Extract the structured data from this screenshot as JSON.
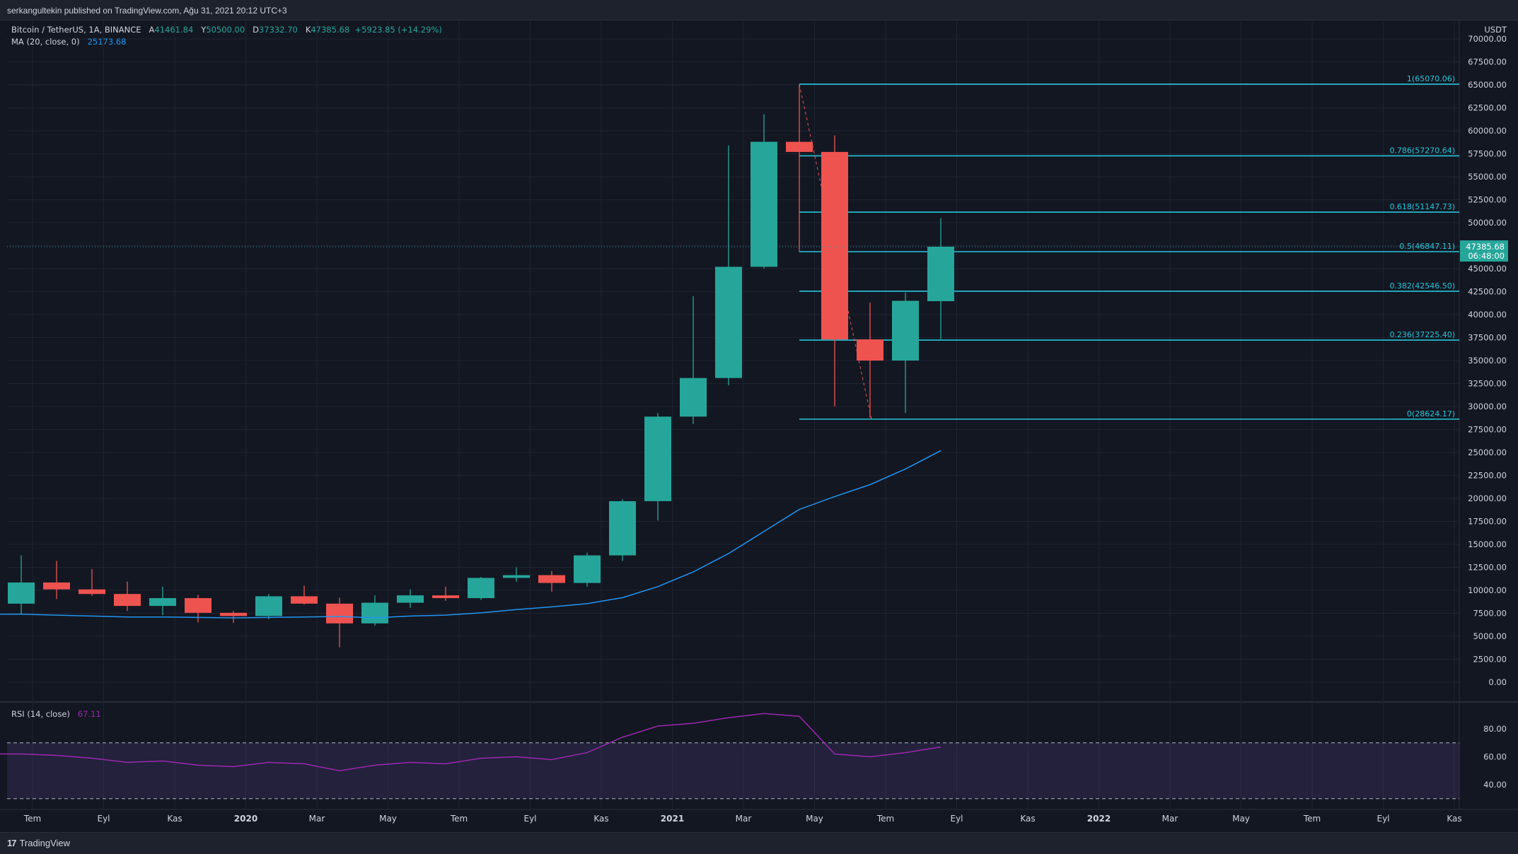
{
  "header": {
    "published": "serkangultekin published on TradingView.com, Ağu 31, 2021 20:12 UTC+3"
  },
  "legend": {
    "symbol": "Bitcoin / TetherUS, 1A, BINANCE",
    "o_label": "A",
    "o": "41461.84",
    "h_label": "Y",
    "h": "50500.00",
    "l_label": "D",
    "l": "37332.70",
    "c_label": "K",
    "c": "47385.68",
    "change": "+5923.85 (+14.29%)",
    "ma_label": "MA (20, close, 0)",
    "ma_value": "25173.68",
    "rsi_label": "RSI (14, close)",
    "rsi_value": "67.11"
  },
  "footer": {
    "brand": "TradingView",
    "brand_mark": "17"
  },
  "colors": {
    "background": "#131722",
    "grid": "#1f2330",
    "up": "#26a69a",
    "down": "#ef5350",
    "ma": "#2196f3",
    "fib": "#26c6da",
    "rsi": "#9c27b0",
    "text": "#d1d4dc"
  },
  "chart_data": {
    "type": "candlestick",
    "currency": "USDT",
    "y_ticks": [
      "70000.00",
      "67500.00",
      "65000.00",
      "62500.00",
      "60000.00",
      "57500.00",
      "55000.00",
      "52500.00",
      "50000.00",
      "47500.00",
      "45000.00",
      "42500.00",
      "40000.00",
      "37500.00",
      "35000.00",
      "32500.00",
      "30000.00",
      "27500.00",
      "25000.00",
      "22500.00",
      "20000.00",
      "17500.00",
      "15000.00",
      "12500.00",
      "10000.00",
      "7500.00",
      "5000.00",
      "2500.00",
      "0.00"
    ],
    "ylim": [
      0,
      70000
    ],
    "x_labels": [
      "Tem",
      "Eyl",
      "Kas",
      "2020",
      "Mar",
      "May",
      "Tem",
      "Eyl",
      "Kas",
      "2021",
      "Mar",
      "May",
      "Tem",
      "Eyl",
      "Kas",
      "2022",
      "Mar",
      "May",
      "Tem",
      "Eyl",
      "Kas"
    ],
    "last_price": "47385.68",
    "countdown": "06:48:00",
    "candles": [
      {
        "date": "2019-06",
        "o": 8550,
        "h": 13800,
        "l": 7450,
        "c": 10850
      },
      {
        "date": "2019-07",
        "o": 10850,
        "h": 13200,
        "l": 9050,
        "c": 10100
      },
      {
        "date": "2019-08",
        "o": 10100,
        "h": 12300,
        "l": 9400,
        "c": 9600
      },
      {
        "date": "2019-09",
        "o": 9600,
        "h": 10950,
        "l": 7750,
        "c": 8300
      },
      {
        "date": "2019-10",
        "o": 8300,
        "h": 10400,
        "l": 7300,
        "c": 9150
      },
      {
        "date": "2019-11",
        "o": 9150,
        "h": 9500,
        "l": 6500,
        "c": 7550
      },
      {
        "date": "2019-12",
        "o": 7550,
        "h": 7750,
        "l": 6450,
        "c": 7200
      },
      {
        "date": "2020-01",
        "o": 7200,
        "h": 9600,
        "l": 6850,
        "c": 9350
      },
      {
        "date": "2020-02",
        "o": 9350,
        "h": 10500,
        "l": 8450,
        "c": 8550
      },
      {
        "date": "2020-03",
        "o": 8550,
        "h": 9200,
        "l": 3800,
        "c": 6400
      },
      {
        "date": "2020-04",
        "o": 6400,
        "h": 9450,
        "l": 6150,
        "c": 8650
      },
      {
        "date": "2020-05",
        "o": 8650,
        "h": 10100,
        "l": 8100,
        "c": 9450
      },
      {
        "date": "2020-06",
        "o": 9450,
        "h": 10400,
        "l": 8850,
        "c": 9150
      },
      {
        "date": "2020-07",
        "o": 9150,
        "h": 11450,
        "l": 8950,
        "c": 11350
      },
      {
        "date": "2020-08",
        "o": 11350,
        "h": 12500,
        "l": 10950,
        "c": 11650
      },
      {
        "date": "2020-09",
        "o": 11650,
        "h": 12100,
        "l": 9850,
        "c": 10800
      },
      {
        "date": "2020-10",
        "o": 10800,
        "h": 14100,
        "l": 10400,
        "c": 13800
      },
      {
        "date": "2020-11",
        "o": 13800,
        "h": 19900,
        "l": 13200,
        "c": 19700
      },
      {
        "date": "2020-12",
        "o": 19700,
        "h": 29300,
        "l": 17600,
        "c": 28900
      },
      {
        "date": "2021-01",
        "o": 28900,
        "h": 42000,
        "l": 28100,
        "c": 33100
      },
      {
        "date": "2021-02",
        "o": 33100,
        "h": 58400,
        "l": 32300,
        "c": 45200
      },
      {
        "date": "2021-03",
        "o": 45200,
        "h": 61800,
        "l": 45000,
        "c": 58800
      },
      {
        "date": "2021-04",
        "o": 58800,
        "h": 65000,
        "l": 47000,
        "c": 57700
      },
      {
        "date": "2021-05",
        "o": 57700,
        "h": 59500,
        "l": 30000,
        "c": 37300
      },
      {
        "date": "2021-06",
        "o": 37300,
        "h": 41300,
        "l": 28800,
        "c": 35000
      },
      {
        "date": "2021-07",
        "o": 35000,
        "h": 42400,
        "l": 29300,
        "c": 41500
      },
      {
        "date": "2021-08",
        "o": 41460,
        "h": 50500,
        "l": 37330,
        "c": 47385
      }
    ],
    "ma": [
      7400,
      7300,
      7200,
      7100,
      7100,
      7050,
      7000,
      7050,
      7100,
      7150,
      7000,
      7200,
      7300,
      7550,
      7900,
      8200,
      8550,
      9200,
      10400,
      12000,
      14000,
      16400,
      18800,
      20200,
      21500,
      23200,
      25200
    ],
    "fib": [
      {
        "level": "1",
        "price": 65070.06,
        "label": "1(65070.06)"
      },
      {
        "level": "0.786",
        "price": 57270.64,
        "label": "0.786(57270.64)"
      },
      {
        "level": "0.618",
        "price": 51147.73,
        "label": "0.618(51147.73)"
      },
      {
        "level": "0.5",
        "price": 46847.11,
        "label": "0.5(46847.11)"
      },
      {
        "level": "0.382",
        "price": 42546.5,
        "label": "0.382(42546.50)"
      },
      {
        "level": "0.236",
        "price": 37225.4,
        "label": "0.236(37225.40)"
      },
      {
        "level": "0",
        "price": 28624.17,
        "label": "0(28624.17)"
      }
    ],
    "rsi": {
      "y_ticks": [
        "80.00",
        "60.00",
        "40.00"
      ],
      "ylim": [
        30,
        95
      ],
      "upper": 70,
      "lower": 30,
      "values": [
        62,
        61,
        59,
        56,
        57,
        54,
        53,
        56,
        55,
        50,
        54,
        56,
        55,
        59,
        60,
        58,
        63,
        74,
        82,
        84,
        88,
        91,
        89,
        62,
        60,
        63,
        67
      ]
    }
  }
}
